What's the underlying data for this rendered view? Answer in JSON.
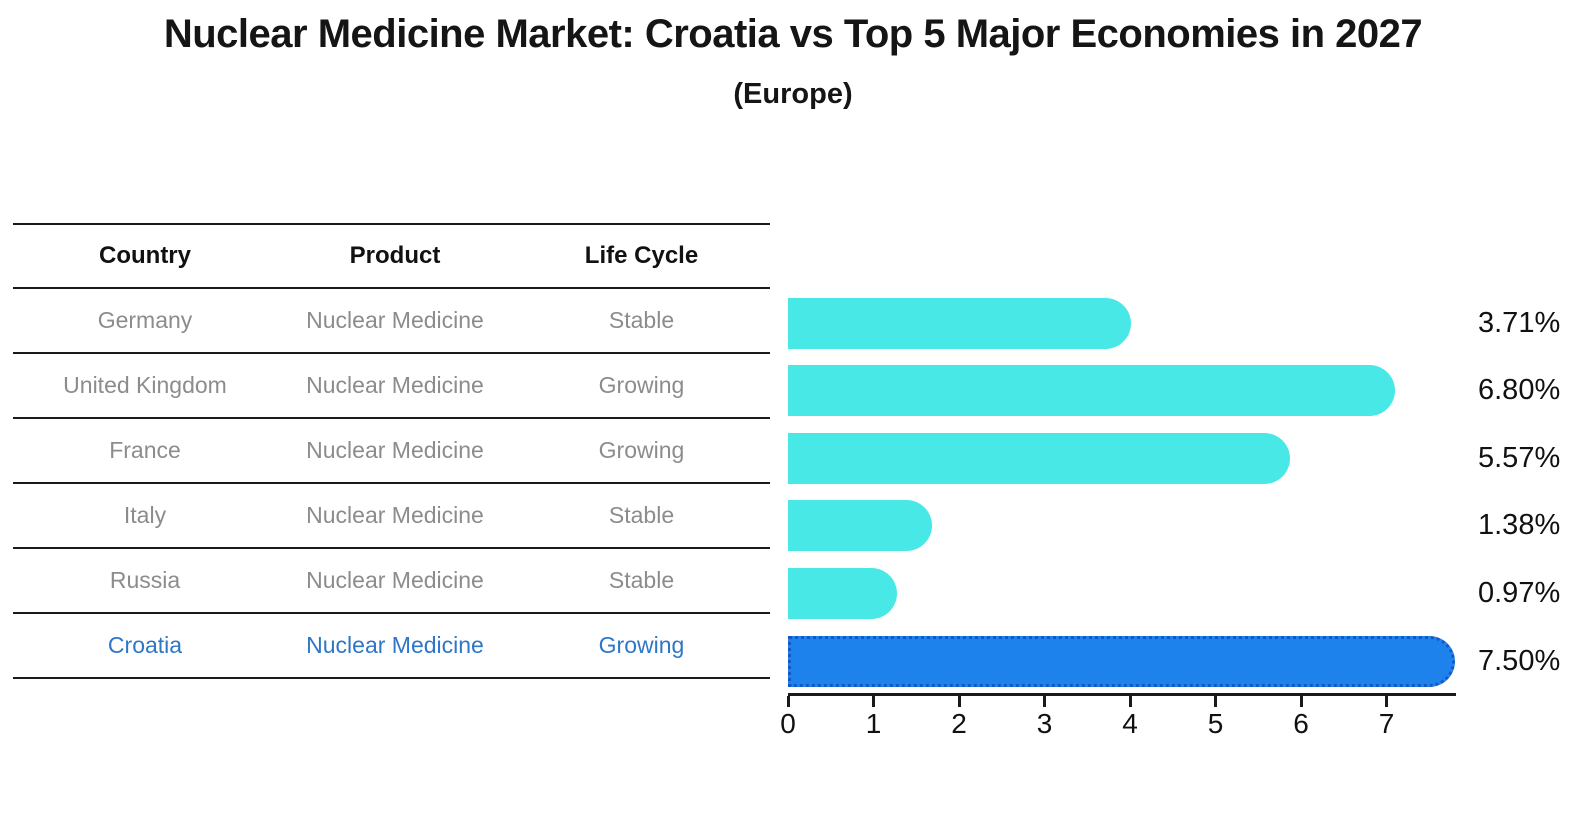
{
  "title": "Nuclear Medicine Market: Croatia vs Top 5 Major Economies in 2027",
  "subtitle": "(Europe)",
  "table": {
    "headers": [
      "Country",
      "Product",
      "Life Cycle"
    ],
    "rows": [
      {
        "country": "Germany",
        "product": "Nuclear Medicine",
        "life_cycle": "Stable",
        "highlighted": false
      },
      {
        "country": "United Kingdom",
        "product": "Nuclear Medicine",
        "life_cycle": "Growing",
        "highlighted": false
      },
      {
        "country": "France",
        "product": "Nuclear Medicine",
        "life_cycle": "Growing",
        "highlighted": false
      },
      {
        "country": "Italy",
        "product": "Nuclear Medicine",
        "life_cycle": "Stable",
        "highlighted": false
      },
      {
        "country": "Russia",
        "product": "Nuclear Medicine",
        "life_cycle": "Stable",
        "highlighted": false
      },
      {
        "country": "Croatia",
        "product": "Nuclear Medicine",
        "life_cycle": "Growing",
        "highlighted": true
      }
    ]
  },
  "chart_data": {
    "type": "bar",
    "orientation": "horizontal",
    "title": "Nuclear Medicine Market: Croatia vs Top 5 Major Economies in 2027",
    "subtitle": "(Europe)",
    "categories": [
      "Germany",
      "United Kingdom",
      "France",
      "Italy",
      "Russia",
      "Croatia"
    ],
    "values": [
      3.71,
      6.8,
      5.57,
      1.38,
      0.97,
      7.5
    ],
    "value_labels": [
      "3.71%",
      "6.80%",
      "5.57%",
      "1.38%",
      "0.97%",
      "7.50%"
    ],
    "x_ticks": [
      "0",
      "1",
      "2",
      "3",
      "4",
      "5",
      "6",
      "7"
    ],
    "xlim": [
      0,
      7.9
    ],
    "grid": false,
    "legend": false,
    "highlight_index": 5,
    "colors": {
      "bar_default": "#48E8E6",
      "bar_highlight": "#1E82EC",
      "highlight_border": "#1359C6",
      "highlight_text": "#2E76C8",
      "row_text": "#8C8C8C",
      "axis_text": "#111111"
    }
  }
}
